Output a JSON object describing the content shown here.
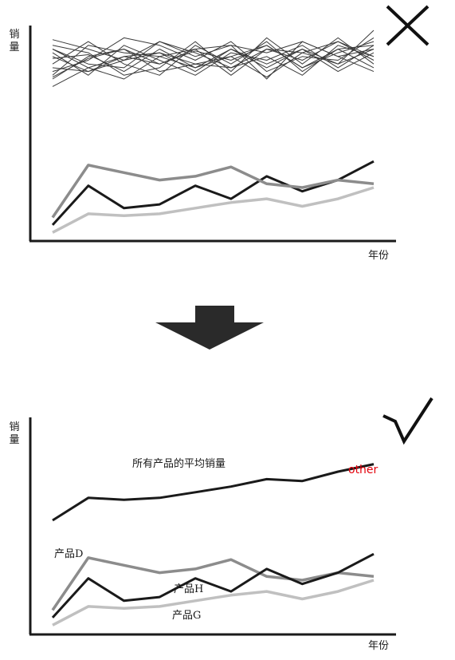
{
  "top_panel": {
    "ylabel": "销量",
    "xlabel": "年份",
    "mark": "cross-icon"
  },
  "bottom_panel": {
    "ylabel": "销量",
    "xlabel": "年份",
    "mark": "check-icon",
    "labels": {
      "average": "所有产品的平均销量",
      "other": "other",
      "product_d": "产品D",
      "product_h": "产品H",
      "product_g": "产品G"
    }
  },
  "transition": {
    "icon": "arrow-down-icon"
  },
  "colors": {
    "dark": "#1a1a1a",
    "mid_gray": "#8c8c8c",
    "light_gray": "#c0c0c0",
    "thin": "#3a3a3a",
    "other_text": "#e3000b"
  },
  "chart_data": [
    {
      "type": "line",
      "title": "",
      "xlabel": "年份",
      "ylabel": "销量",
      "grid": false,
      "x": [
        1,
        2,
        3,
        4,
        5,
        6,
        7,
        8,
        9,
        10
      ],
      "series": [
        {
          "values": [
            6,
            27,
            15,
            17,
            27,
            20,
            32,
            24,
            30,
            40
          ]
        },
        {
          "values": [
            10,
            38,
            34,
            30,
            32,
            37,
            28,
            26,
            30,
            28
          ]
        },
        {
          "values": [
            2,
            12,
            11,
            12,
            15,
            18,
            20,
            16,
            20,
            26
          ]
        },
        {
          "values": [
            95,
            97,
            88,
            100,
            90,
            96,
            85,
            98,
            92,
            110
          ]
        },
        {
          "values": [
            90,
            88,
            96,
            92,
            99,
            94,
            102,
            90,
            98,
            104
          ]
        },
        {
          "values": [
            100,
            92,
            90,
            104,
            96,
            102,
            98,
            104,
            96,
            100
          ]
        },
        {
          "values": [
            85,
            95,
            100,
            88,
            92,
            90,
            96,
            86,
            102,
            96
          ]
        },
        {
          "values": [
            105,
            100,
            94,
            98,
            88,
            100,
            90,
            100,
            88,
            98
          ]
        },
        {
          "values": [
            80,
            90,
            84,
            96,
            100,
            86,
            100,
            94,
            104,
            94
          ]
        },
        {
          "values": [
            98,
            86,
            102,
            94,
            86,
            98,
            94,
            102,
            90,
            102
          ]
        },
        {
          "values": [
            92,
            104,
            92,
            86,
            102,
            92,
            104,
            88,
            100,
            90
          ]
        },
        {
          "values": [
            88,
            94,
            106,
            102,
            94,
            104,
            88,
            96,
            94,
            106
          ]
        },
        {
          "values": [
            102,
            98,
            86,
            90,
            104,
            88,
            106,
            92,
            106,
            92
          ]
        },
        {
          "values": [
            86,
            102,
            98,
            96,
            90,
            100,
            92,
            100,
            92,
            100
          ]
        },
        {
          "values": [
            96,
            88,
            94,
            104,
            98,
            90,
            100,
            98,
            104,
            96
          ]
        },
        {
          "values": [
            84,
            96,
            100,
            92,
            100,
            102,
            84,
            104,
            96,
            88
          ]
        },
        {
          "values": [
            100,
            90,
            96,
            98,
            92,
            96,
            102,
            90,
            100,
            102
          ]
        }
      ]
    },
    {
      "type": "line",
      "title": "",
      "xlabel": "年份",
      "ylabel": "销量",
      "grid": false,
      "x": [
        1,
        2,
        3,
        4,
        5,
        6,
        7,
        8,
        9,
        10
      ],
      "series": [
        {
          "name": "所有产品的平均销量",
          "values": [
            58,
            70,
            69,
            70,
            73,
            76,
            80,
            79,
            84,
            88
          ]
        },
        {
          "name": "产品D",
          "values": [
            10,
            38,
            34,
            30,
            32,
            37,
            28,
            26,
            30,
            28
          ]
        },
        {
          "name": "产品H",
          "values": [
            6,
            27,
            15,
            17,
            27,
            20,
            32,
            24,
            30,
            40
          ]
        },
        {
          "name": "产品G",
          "values": [
            2,
            12,
            11,
            12,
            15,
            18,
            20,
            16,
            20,
            26
          ]
        }
      ]
    }
  ]
}
